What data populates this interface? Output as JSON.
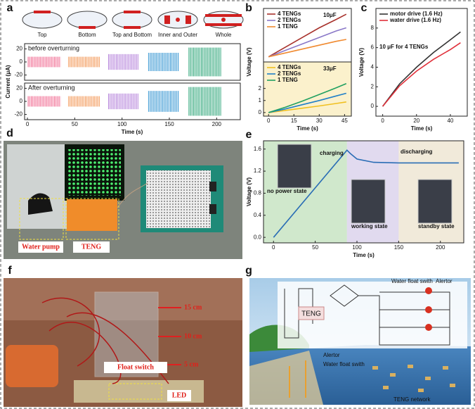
{
  "panel_labels": [
    "a",
    "b",
    "c",
    "d",
    "e",
    "f",
    "g"
  ],
  "chart_data": [
    {
      "type": "trace",
      "categories": [
        "Top",
        "Bottom",
        "Top and Bottom",
        "Inner and Outer",
        "Whole"
      ],
      "colors": [
        "#f0608a",
        "#f2904a",
        "#b07ad8",
        "#2a90d0",
        "#20a070"
      ],
      "x_ranges": [
        [
          0,
          35
        ],
        [
          43,
          77
        ],
        [
          85,
          118
        ],
        [
          127,
          160
        ],
        [
          170,
          205
        ]
      ],
      "rows": [
        {
          "title": "before overturning",
          "values": [
            8,
            8,
            12,
            14,
            22
          ]
        },
        {
          "title": "After overturning",
          "values": [
            8,
            8,
            12,
            16,
            22
          ]
        }
      ],
      "ylabel": "Current (μA)",
      "xlabel": "Time (s)",
      "xlim": [
        -3,
        225
      ],
      "xticks": [
        0,
        50,
        100,
        150,
        200
      ],
      "ylim": [
        -28,
        28
      ],
      "yticks": [
        -20,
        0,
        20
      ]
    },
    {
      "type": "line",
      "title": "10μF",
      "ylabel": "Voltage (V)",
      "legend": "upper left",
      "x": [
        0,
        10,
        20,
        30,
        40,
        46
      ],
      "series": [
        {
          "name": "4 TENGs",
          "color": "#a8322c",
          "values": [
            0,
            1.5,
            3.0,
            4.5,
            5.8,
            6.6
          ]
        },
        {
          "name": "2 TENGs",
          "color": "#8a78c8",
          "values": [
            0,
            1.0,
            2.0,
            3.0,
            4.0,
            4.5
          ]
        },
        {
          "name": "1 TENG",
          "color": "#f08a30",
          "values": [
            0,
            0.6,
            1.2,
            1.8,
            2.4,
            2.7
          ]
        }
      ],
      "xlim": [
        -3,
        49
      ],
      "ylim": [
        -0.8,
        7.5
      ]
    },
    {
      "type": "line",
      "title": "33μF",
      "xlabel": "Time (s)",
      "legend": "upper left",
      "x": [
        0,
        10,
        20,
        30,
        40,
        46
      ],
      "series": [
        {
          "name": "4 TENGs",
          "color": "#f0c020",
          "values": [
            0,
            0.18,
            0.36,
            0.55,
            0.75,
            0.88
          ]
        },
        {
          "name": "2 TENGs",
          "color": "#2080c8",
          "values": [
            0,
            0.3,
            0.65,
            1.0,
            1.38,
            1.6
          ]
        },
        {
          "name": "1 TENG",
          "color": "#20a060",
          "values": [
            0,
            0.45,
            0.95,
            1.5,
            2.05,
            2.4
          ]
        }
      ],
      "xlim": [
        -3,
        49
      ],
      "ylim": [
        -0.3,
        4.2
      ],
      "xticks": [
        0,
        15,
        30,
        45
      ],
      "yticks": [
        0,
        1,
        2
      ]
    },
    {
      "type": "line",
      "annotation": "10 μF for 4 TENGs",
      "ylabel": "Voltage (V)",
      "xlabel": "Time (s)",
      "legend": "upper left",
      "x": [
        0,
        10,
        20,
        30,
        40,
        46
      ],
      "series": [
        {
          "name": "motor drive (1.6 Hz)",
          "color": "#333333",
          "values": [
            0,
            2.3,
            4.0,
            5.5,
            6.8,
            7.6
          ]
        },
        {
          "name": "water drive (1.6 Hz)",
          "color": "#e0303a",
          "values": [
            0,
            2.1,
            3.6,
            4.8,
            5.8,
            6.5
          ]
        }
      ],
      "xlim": [
        -4,
        50
      ],
      "ylim": [
        -1,
        10
      ],
      "xticks": [
        0,
        20,
        40
      ],
      "yticks": [
        0,
        2,
        4,
        6,
        8
      ]
    },
    {
      "type": "line",
      "ylabel": "Voltage (V)",
      "xlabel": "Time (s)",
      "annotations": [
        "charging",
        "discharging",
        "no power state",
        "working state",
        "standby state"
      ],
      "x": [
        0,
        88,
        92,
        100,
        120,
        150,
        222
      ],
      "series": [
        {
          "color": "#2a6db5",
          "values": [
            0,
            1.58,
            1.52,
            1.42,
            1.36,
            1.35,
            1.35
          ]
        }
      ],
      "xlim": [
        -12,
        228
      ],
      "ylim": [
        -0.1,
        1.75
      ],
      "xticks": [
        0,
        50,
        100,
        150,
        200
      ],
      "yticks": [
        {
          "value": 0,
          "label": "0.0"
        },
        0.4,
        0.8,
        1.2,
        1.6
      ]
    }
  ],
  "photo_d": {
    "labels": [
      "Water pump",
      "TENG"
    ]
  },
  "photo_f": {
    "labels": [
      "15 cm",
      "10 cm",
      "5 cm",
      "Float switch",
      "LED"
    ]
  },
  "diagram_g": {
    "labels": [
      "TENG",
      "Water float swith",
      "Alertor",
      "Alertor",
      "Water float swith",
      "TENG network"
    ]
  }
}
